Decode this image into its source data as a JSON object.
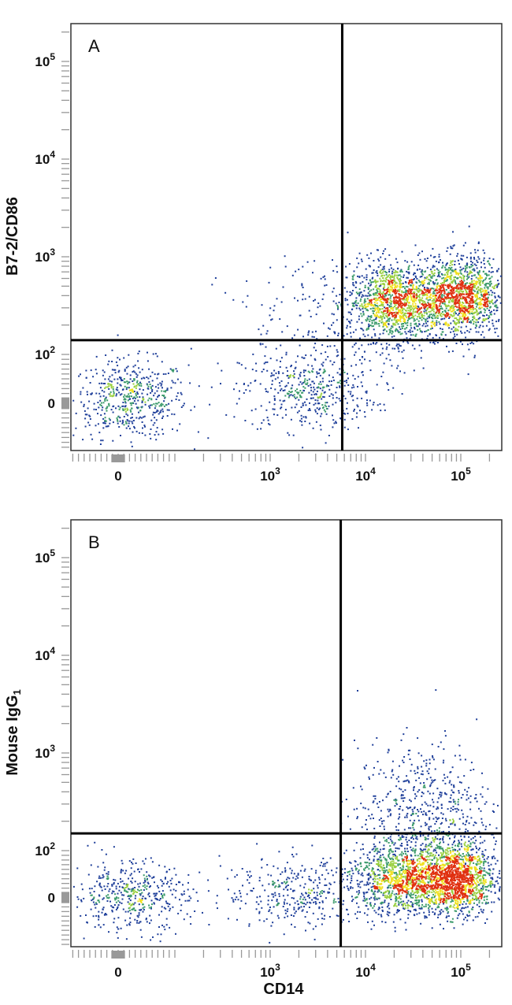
{
  "chart_data": [
    {
      "type": "scatter",
      "subtype": "flow-cytometry-density-dot-plot",
      "panel_label": "A",
      "xlabel": "",
      "ylabel": "B7-2/CD86",
      "x_scale": "biexponential",
      "y_scale": "biexponential",
      "x_ticks": [
        {
          "value": 0,
          "base": "0",
          "exp": ""
        },
        {
          "value": 1000,
          "base": "10",
          "exp": "3"
        },
        {
          "value": 10000,
          "base": "10",
          "exp": "4"
        },
        {
          "value": 100000,
          "base": "10",
          "exp": "5"
        }
      ],
      "y_ticks": [
        {
          "value": 0,
          "base": "0",
          "exp": ""
        },
        {
          "value": 100,
          "base": "10",
          "exp": "2"
        },
        {
          "value": 1000,
          "base": "10",
          "exp": "3"
        },
        {
          "value": 10000,
          "base": "10",
          "exp": "4"
        },
        {
          "value": 100000,
          "base": "10",
          "exp": "5"
        }
      ],
      "quadrant_gate": {
        "x": 5700,
        "y": 140
      },
      "density_colors": [
        "#1f3f9a",
        "#3a9a6a",
        "#9ad040",
        "#f0e020",
        "#e03010"
      ],
      "populations": [
        {
          "x": 20,
          "y": 10,
          "x_spread_decades": 0.3,
          "y_spread_decades": 0.2,
          "count": 550
        },
        {
          "x": 2500,
          "y": 25,
          "x_spread_decades": 0.35,
          "y_spread_decades": 0.2,
          "count": 420
        },
        {
          "x": 20000,
          "y": 350,
          "x_spread_decades": 0.25,
          "y_spread_decades": 0.2,
          "count": 1300
        },
        {
          "x": 100000,
          "y": 400,
          "x_spread_decades": 0.22,
          "y_spread_decades": 0.2,
          "count": 1300
        },
        {
          "x": 5000,
          "y": 200,
          "x_spread_decades": 0.6,
          "y_spread_decades": 0.35,
          "count": 220
        }
      ]
    },
    {
      "type": "scatter",
      "subtype": "flow-cytometry-density-dot-plot",
      "panel_label": "B",
      "xlabel": "CD14",
      "ylabel": "Mouse IgG",
      "ylabel_subscript": "1",
      "x_scale": "biexponential",
      "y_scale": "biexponential",
      "x_ticks": [
        {
          "value": 0,
          "base": "0",
          "exp": ""
        },
        {
          "value": 1000,
          "base": "10",
          "exp": "3"
        },
        {
          "value": 10000,
          "base": "10",
          "exp": "4"
        },
        {
          "value": 100000,
          "base": "10",
          "exp": "5"
        }
      ],
      "y_ticks": [
        {
          "value": 0,
          "base": "0",
          "exp": ""
        },
        {
          "value": 100,
          "base": "10",
          "exp": "2"
        },
        {
          "value": 1000,
          "base": "10",
          "exp": "3"
        },
        {
          "value": 10000,
          "base": "10",
          "exp": "4"
        },
        {
          "value": 100000,
          "base": "10",
          "exp": "5"
        }
      ],
      "quadrant_gate": {
        "x": 5500,
        "y": 150
      },
      "density_colors": [
        "#1f3f9a",
        "#3a9a6a",
        "#9ad040",
        "#f0e020",
        "#e03010"
      ],
      "populations": [
        {
          "x": 20,
          "y": 5,
          "x_spread_decades": 0.3,
          "y_spread_decades": 0.18,
          "count": 450
        },
        {
          "x": 2000,
          "y": 10,
          "x_spread_decades": 0.4,
          "y_spread_decades": 0.18,
          "count": 350
        },
        {
          "x": 25000,
          "y": 40,
          "x_spread_decades": 0.28,
          "y_spread_decades": 0.18,
          "count": 1200
        },
        {
          "x": 90000,
          "y": 40,
          "x_spread_decades": 0.2,
          "y_spread_decades": 0.18,
          "count": 1300
        },
        {
          "x": 40000,
          "y": 250,
          "x_spread_decades": 0.35,
          "y_spread_decades": 0.35,
          "count": 600
        }
      ]
    }
  ]
}
